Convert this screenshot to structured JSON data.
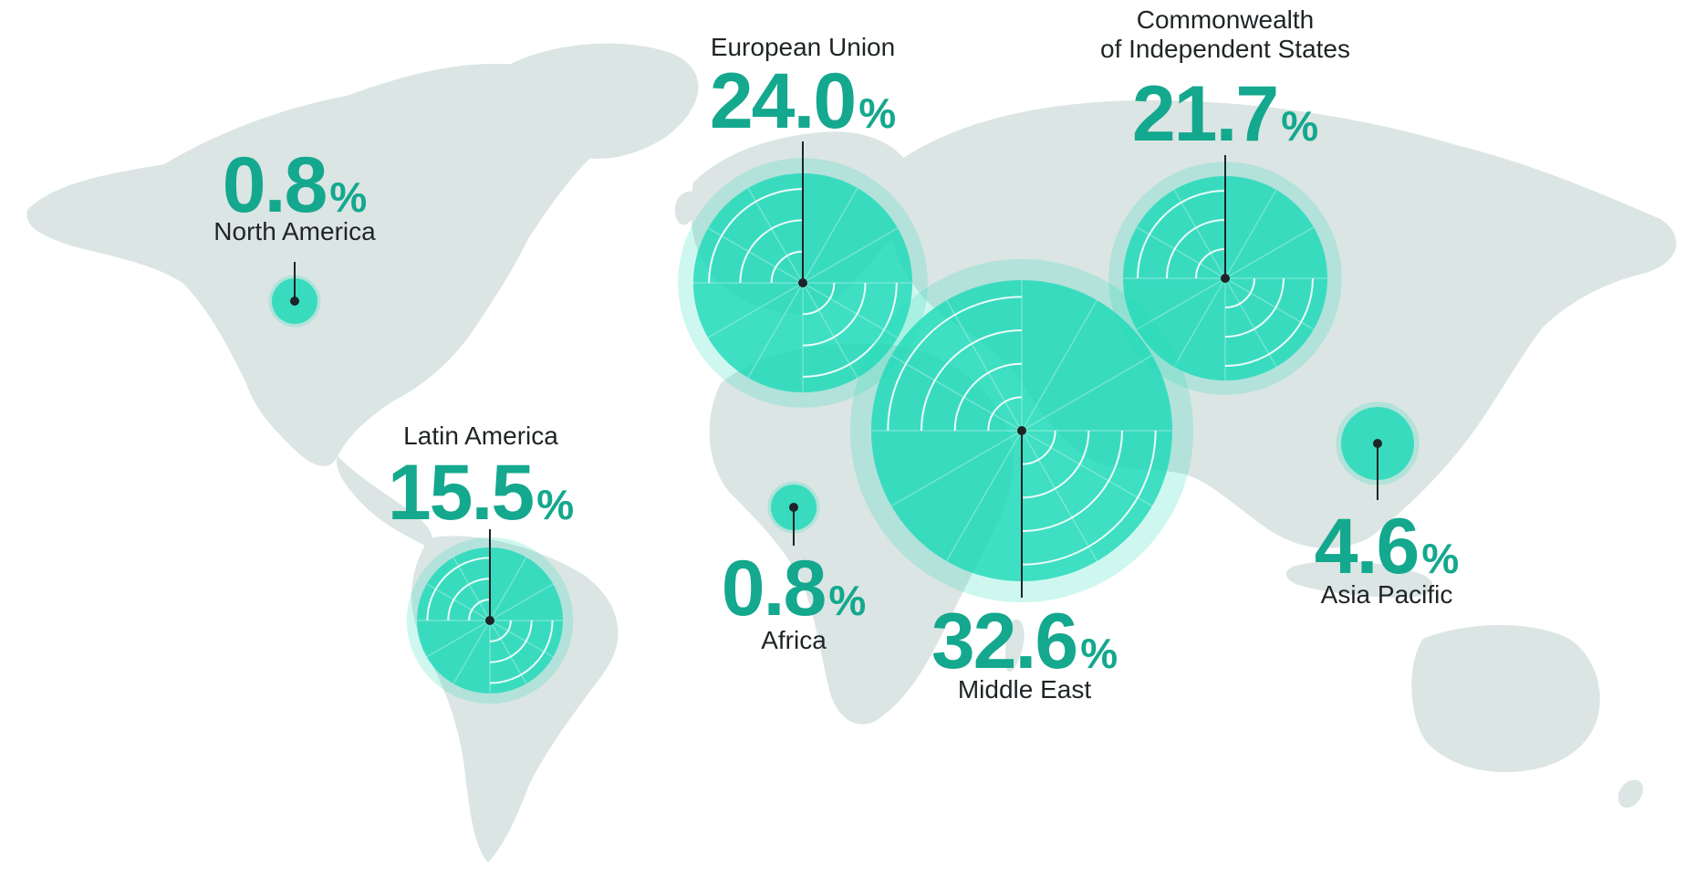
{
  "map": {
    "land_color": "#dbe5e4",
    "accent_color": "#1fd9b8",
    "text_color": "#1f2426",
    "value_color": "#14a88e"
  },
  "regions": [
    {
      "name": "North America",
      "value": "0.8",
      "unit": "%",
      "share": 0.8
    },
    {
      "name": "European Union",
      "value": "24.0",
      "unit": "%",
      "share": 24.0
    },
    {
      "name": "Commonwealth",
      "name_line2": "of Independent States",
      "value": "21.7",
      "unit": "%",
      "share": 21.7
    },
    {
      "name": "Latin America",
      "value": "15.5",
      "unit": "%",
      "share": 15.5
    },
    {
      "name": "Africa",
      "value": "0.8",
      "unit": "%",
      "share": 0.8
    },
    {
      "name": "Middle East",
      "value": "32.6",
      "unit": "%",
      "share": 32.6
    },
    {
      "name": "Asia Pacific",
      "value": "4.6",
      "unit": "%",
      "share": 4.6
    }
  ]
}
